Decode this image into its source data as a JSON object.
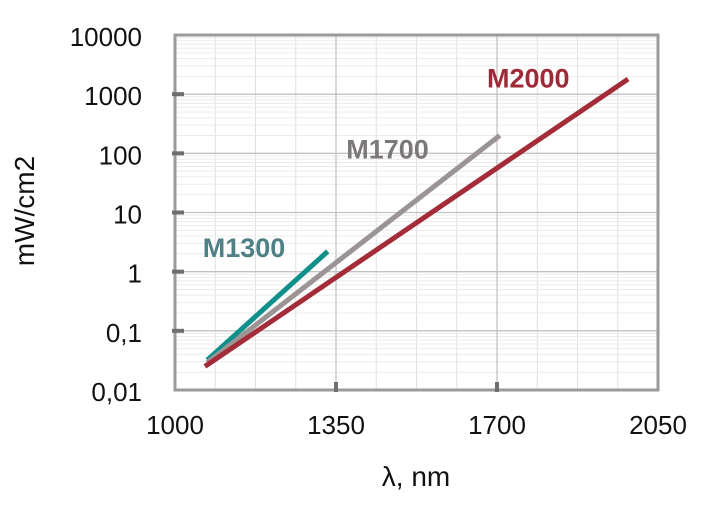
{
  "chart_data": {
    "type": "line",
    "title": "",
    "xlabel": "λ, nm",
    "ylabel": "mW/cm2",
    "x_scale": "linear",
    "y_scale": "log",
    "xlim": [
      1000,
      2050
    ],
    "ylim": [
      0.01,
      10000
    ],
    "grid": true,
    "legend_position": "inline-labels",
    "x_ticks": {
      "values": [
        1000,
        1350,
        1700,
        2050
      ],
      "labels": [
        "1000",
        "1350",
        "1700",
        "2050"
      ]
    },
    "y_ticks": {
      "values": [
        10000,
        1000,
        100,
        10,
        1,
        0.1,
        0.01
      ],
      "labels": [
        "10000",
        "1000",
        "100",
        "10",
        "1",
        "0,1",
        "0,01"
      ]
    },
    "x_minor_step": 87.5,
    "series": [
      {
        "name": "M1300",
        "color": "#0f908b",
        "label_color": "#4e8086",
        "points": [
          [
            1070,
            0.032
          ],
          [
            1332,
            2.2
          ]
        ],
        "label_at": [
          1150,
          2.6
        ]
      },
      {
        "name": "M1700",
        "color": "#9c9494",
        "label_color": "#7d7878",
        "points": [
          [
            1070,
            0.029
          ],
          [
            1706,
            200
          ]
        ],
        "label_at": [
          1462,
          120
        ]
      },
      {
        "name": "M2000",
        "color": "#a42b38",
        "label_color": "#9d2a36",
        "points": [
          [
            1065,
            0.025
          ],
          [
            1985,
            1800
          ]
        ],
        "label_at": [
          1768,
          1900
        ]
      }
    ],
    "style_colors": {
      "major_grid": "#c2c2c2",
      "minor_grid_x": "#e0e0e0",
      "minor_grid_y": "#ebebeb",
      "border": "#9a9a9a",
      "tick": "#6e6e6e",
      "text": "#111111"
    }
  }
}
